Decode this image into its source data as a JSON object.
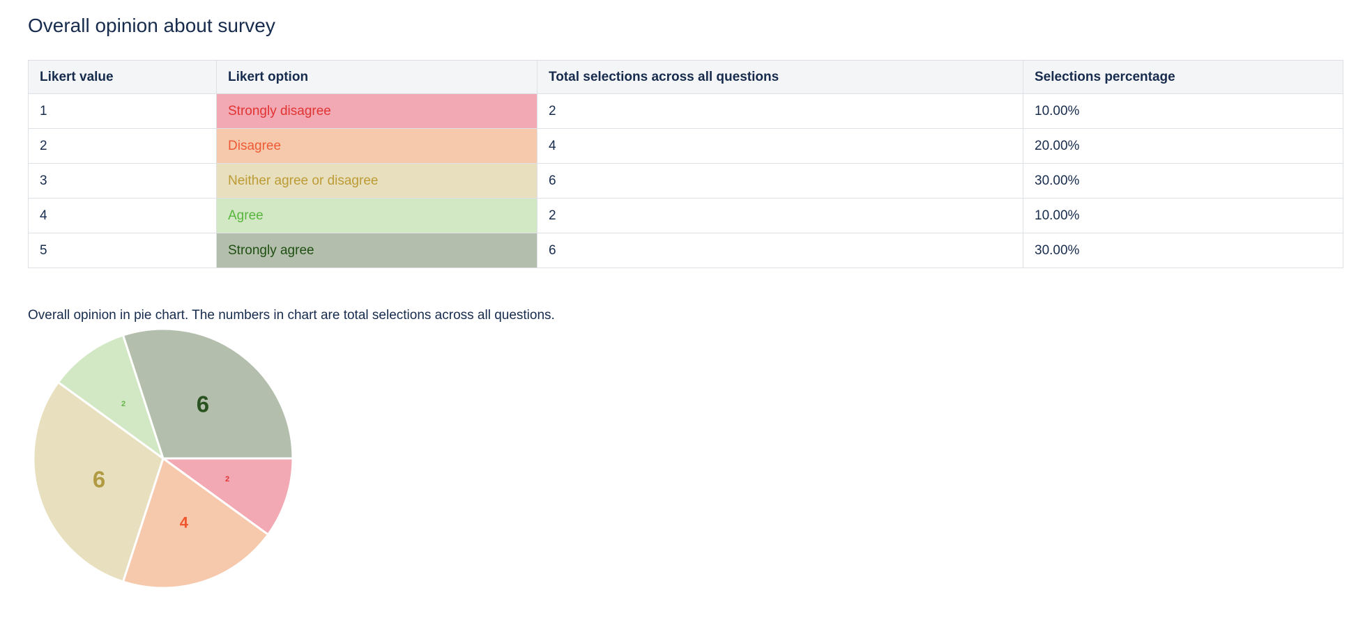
{
  "page": {
    "title": "Overall opinion about survey",
    "pie_caption": "Overall opinion in pie chart. The numbers in chart are total selections across all questions."
  },
  "colors": {
    "text_navy": "#172b4d",
    "table_header_bg": "#f4f5f7",
    "table_border": "#dde0e4",
    "pie_separator": "#ffffff"
  },
  "table": {
    "headers": [
      "Likert value",
      "Likert option",
      "Total selections across all questions",
      "Selections percentage"
    ],
    "rows": [
      {
        "value": "1",
        "option": "Strongly disagree",
        "total": "2",
        "percentage": "10.00%",
        "option_color": "#e23333",
        "option_bg": "#f2a9b4"
      },
      {
        "value": "2",
        "option": "Disagree",
        "total": "4",
        "percentage": "20.00%",
        "option_color": "#ee5b35",
        "option_bg": "#f6c8ac"
      },
      {
        "value": "3",
        "option": "Neither agree or disagree",
        "total": "6",
        "percentage": "30.00%",
        "option_color": "#bc9b35",
        "option_bg": "#e8dfbe"
      },
      {
        "value": "4",
        "option": "Agree",
        "total": "2",
        "percentage": "10.00%",
        "option_color": "#57b53d",
        "option_bg": "#d2e8c5"
      },
      {
        "value": "5",
        "option": "Strongly agree",
        "total": "6",
        "percentage": "30.00%",
        "option_color": "#1f4f12",
        "option_bg": "#b3bfac"
      }
    ]
  },
  "chart_data": {
    "type": "pie",
    "title": "Overall opinion in pie chart",
    "categories": [
      "Strongly disagree",
      "Disagree",
      "Neither agree or disagree",
      "Agree",
      "Strongly agree"
    ],
    "values": [
      2,
      4,
      6,
      2,
      6
    ],
    "percentages": [
      10,
      20,
      30,
      10,
      30
    ],
    "total_selections": 20,
    "slice_colors": [
      "#f2a9b4",
      "#f6c8ac",
      "#e8dfbe",
      "#d2e8c5",
      "#b3bfac"
    ],
    "label_colors": [
      "#e23333",
      "#f1572e",
      "#b09a42",
      "#63b24a",
      "#2a5220"
    ],
    "data_labels": [
      "2",
      "4",
      "6",
      "2",
      "6"
    ],
    "start_angle_deg": 0,
    "direction": "clockwise",
    "legend_position": "none",
    "label_radius_fraction": 0.52,
    "label_font_px_per_unit": 5.5,
    "radius_px": 186
  }
}
